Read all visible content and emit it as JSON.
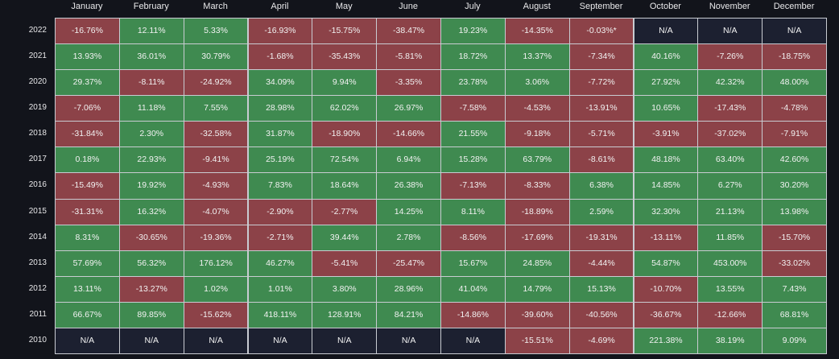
{
  "table": {
    "columns": [
      "January",
      "February",
      "March",
      "April",
      "May",
      "June",
      "July",
      "August",
      "September",
      "October",
      "November",
      "December"
    ],
    "rows": [
      {
        "year": "2022",
        "cells": [
          "-16.76%",
          "12.11%",
          "5.33%",
          "-16.93%",
          "-15.75%",
          "-38.47%",
          "19.23%",
          "-14.35%",
          "-0.03%*",
          "N/A",
          "N/A",
          "N/A"
        ]
      },
      {
        "year": "2021",
        "cells": [
          "13.93%",
          "36.01%",
          "30.79%",
          "-1.68%",
          "-35.43%",
          "-5.81%",
          "18.72%",
          "13.37%",
          "-7.34%",
          "40.16%",
          "-7.26%",
          "-18.75%"
        ]
      },
      {
        "year": "2020",
        "cells": [
          "29.37%",
          "-8.11%",
          "-24.92%",
          "34.09%",
          "9.94%",
          "-3.35%",
          "23.78%",
          "3.06%",
          "-7.72%",
          "27.92%",
          "42.32%",
          "48.00%"
        ]
      },
      {
        "year": "2019",
        "cells": [
          "-7.06%",
          "11.18%",
          "7.55%",
          "28.98%",
          "62.02%",
          "26.97%",
          "-7.58%",
          "-4.53%",
          "-13.91%",
          "10.65%",
          "-17.43%",
          "-4.78%"
        ]
      },
      {
        "year": "2018",
        "cells": [
          "-31.84%",
          "2.30%",
          "-32.58%",
          "31.87%",
          "-18.90%",
          "-14.66%",
          "21.55%",
          "-9.18%",
          "-5.71%",
          "-3.91%",
          "-37.02%",
          "-7.91%"
        ]
      },
      {
        "year": "2017",
        "cells": [
          "0.18%",
          "22.93%",
          "-9.41%",
          "25.19%",
          "72.54%",
          "6.94%",
          "15.28%",
          "63.79%",
          "-8.61%",
          "48.18%",
          "63.40%",
          "42.60%"
        ]
      },
      {
        "year": "2016",
        "cells": [
          "-15.49%",
          "19.92%",
          "-4.93%",
          "7.83%",
          "18.64%",
          "26.38%",
          "-7.13%",
          "-8.33%",
          "6.38%",
          "14.85%",
          "6.27%",
          "30.20%"
        ]
      },
      {
        "year": "2015",
        "cells": [
          "-31.31%",
          "16.32%",
          "-4.07%",
          "-2.90%",
          "-2.77%",
          "14.25%",
          "8.11%",
          "-18.89%",
          "2.59%",
          "32.30%",
          "21.13%",
          "13.98%"
        ]
      },
      {
        "year": "2014",
        "cells": [
          "8.31%",
          "-30.65%",
          "-19.36%",
          "-2.71%",
          "39.44%",
          "2.78%",
          "-8.56%",
          "-17.69%",
          "-19.31%",
          "-13.11%",
          "11.85%",
          "-15.70%"
        ]
      },
      {
        "year": "2013",
        "cells": [
          "57.69%",
          "56.32%",
          "176.12%",
          "46.27%",
          "-5.41%",
          "-25.47%",
          "15.67%",
          "24.85%",
          "-4.44%",
          "54.87%",
          "453.00%",
          "-33.02%"
        ]
      },
      {
        "year": "2012",
        "cells": [
          "13.11%",
          "-13.27%",
          "1.02%",
          "1.01%",
          "3.80%",
          "28.96%",
          "41.04%",
          "14.79%",
          "15.13%",
          "-10.70%",
          "13.55%",
          "7.43%"
        ]
      },
      {
        "year": "2011",
        "cells": [
          "66.67%",
          "89.85%",
          "-15.62%",
          "418.11%",
          "128.91%",
          "84.21%",
          "-14.86%",
          "-39.60%",
          "-40.56%",
          "-36.67%",
          "-12.66%",
          "68.81%"
        ]
      },
      {
        "year": "2010",
        "cells": [
          "N/A",
          "N/A",
          "N/A",
          "N/A",
          "N/A",
          "N/A",
          "N/A",
          "-15.51%",
          "-4.69%",
          "221.38%",
          "38.19%",
          "9.09%"
        ]
      }
    ]
  }
}
